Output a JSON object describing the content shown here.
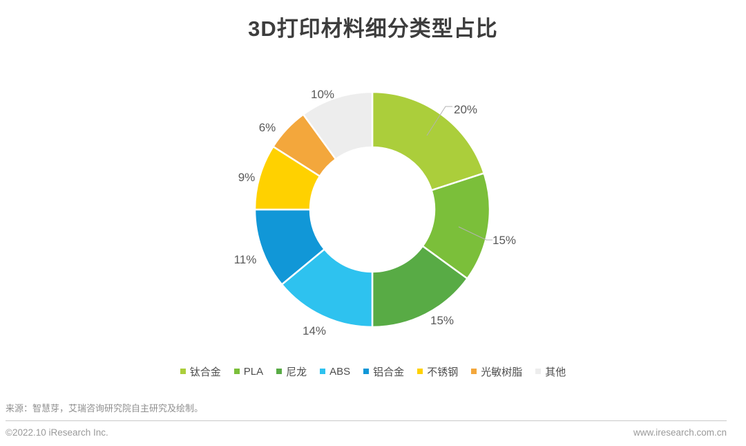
{
  "page": {
    "title": "3D打印材料细分类型占比",
    "source_note": "来源：智慧芽，艾瑞咨询研究院自主研究及绘制。",
    "footer": {
      "copyright": "©2022.10 iResearch Inc.",
      "website": "www.iresearch.com.cn"
    }
  },
  "chart_data": {
    "type": "pie",
    "subtype": "donut",
    "title": "3D打印材料细分类型占比",
    "unit": "%",
    "start_angle_deg": 0,
    "direction": "clockwise",
    "legend_position": "bottom",
    "categories": [
      "钛合金",
      "PLA",
      "尼龙",
      "ABS",
      "铝合金",
      "不锈钢",
      "光敏树脂",
      "其他"
    ],
    "values": [
      20,
      15,
      15,
      14,
      11,
      9,
      6,
      10
    ],
    "labels": [
      "20%",
      "15%",
      "15%",
      "14%",
      "11%",
      "9%",
      "6%",
      "10%"
    ],
    "colors": [
      "#abce3b",
      "#7bbf3a",
      "#58ab45",
      "#2ec2ef",
      "#1197d7",
      "#ffd100",
      "#f3a73c",
      "#ededed"
    ],
    "label_color": "#595959",
    "leader_line_color": "#b3b3b3",
    "slice_gap_color": "#ffffff"
  }
}
